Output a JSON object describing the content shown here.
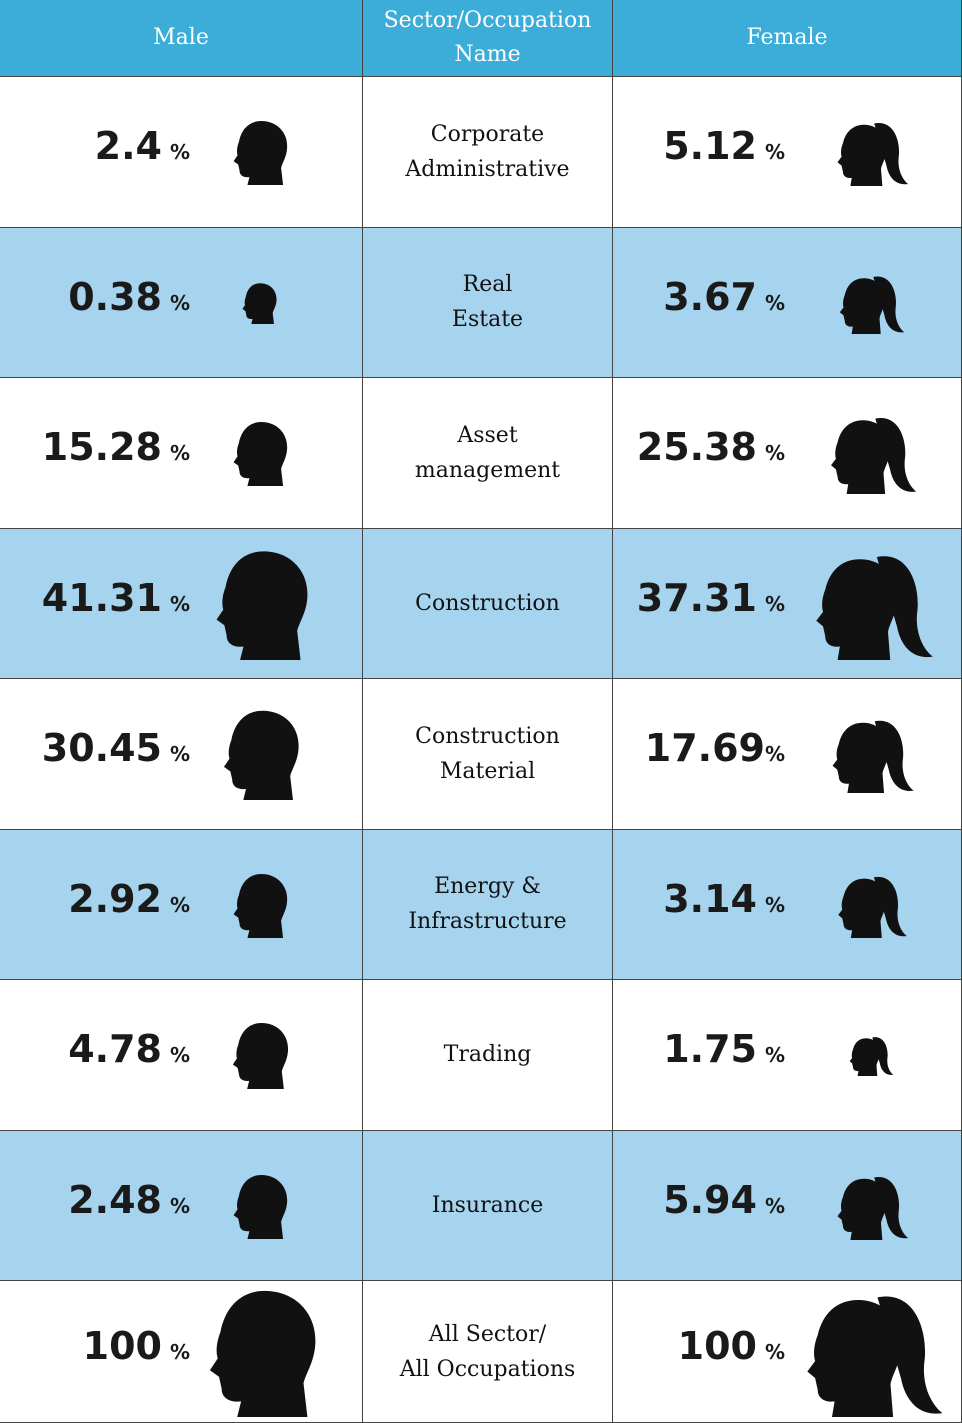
{
  "table": {
    "header": {
      "male": "Male",
      "sector": [
        "Sector/Occupation",
        "Name"
      ],
      "female": "Female"
    },
    "rows": [
      {
        "male": {
          "value": "2.4",
          "unit": "%"
        },
        "sector": [
          "Corporate",
          "Administrative"
        ],
        "female": {
          "value": "5.12",
          "unit": "%"
        }
      },
      {
        "male": {
          "value": "0.38",
          "unit": "%"
        },
        "sector": [
          "Real",
          "Estate"
        ],
        "female": {
          "value": "3.67",
          "unit": "%"
        }
      },
      {
        "male": {
          "value": "15.28",
          "unit": "%"
        },
        "sector": [
          "Asset",
          "management"
        ],
        "female": {
          "value": "25.38",
          "unit": "%"
        }
      },
      {
        "male": {
          "value": "41.31",
          "unit": "%"
        },
        "sector": [
          "Construction"
        ],
        "female": {
          "value": "37.31",
          "unit": "%"
        }
      },
      {
        "male": {
          "value": "30.45",
          "unit": "%"
        },
        "sector": [
          "Construction",
          "Material"
        ],
        "female": {
          "value": "17.69",
          "unit": "%"
        }
      },
      {
        "male": {
          "value": "2.92",
          "unit": "%"
        },
        "sector": [
          "Energy &",
          "Infrastructure"
        ],
        "female": {
          "value": "3.14",
          "unit": "%"
        }
      },
      {
        "male": {
          "value": "4.78",
          "unit": "%"
        },
        "sector": [
          "Trading"
        ],
        "female": {
          "value": "1.75",
          "unit": "%"
        }
      },
      {
        "male": {
          "value": "2.48",
          "unit": "%"
        },
        "sector": [
          "Insurance"
        ],
        "female": {
          "value": "5.94",
          "unit": "%"
        }
      },
      {
        "male": {
          "value": "100",
          "unit": "%"
        },
        "sector": [
          "All Sector/",
          "All Occupations"
        ],
        "female": {
          "value": "100",
          "unit": "%"
        }
      }
    ]
  }
}
